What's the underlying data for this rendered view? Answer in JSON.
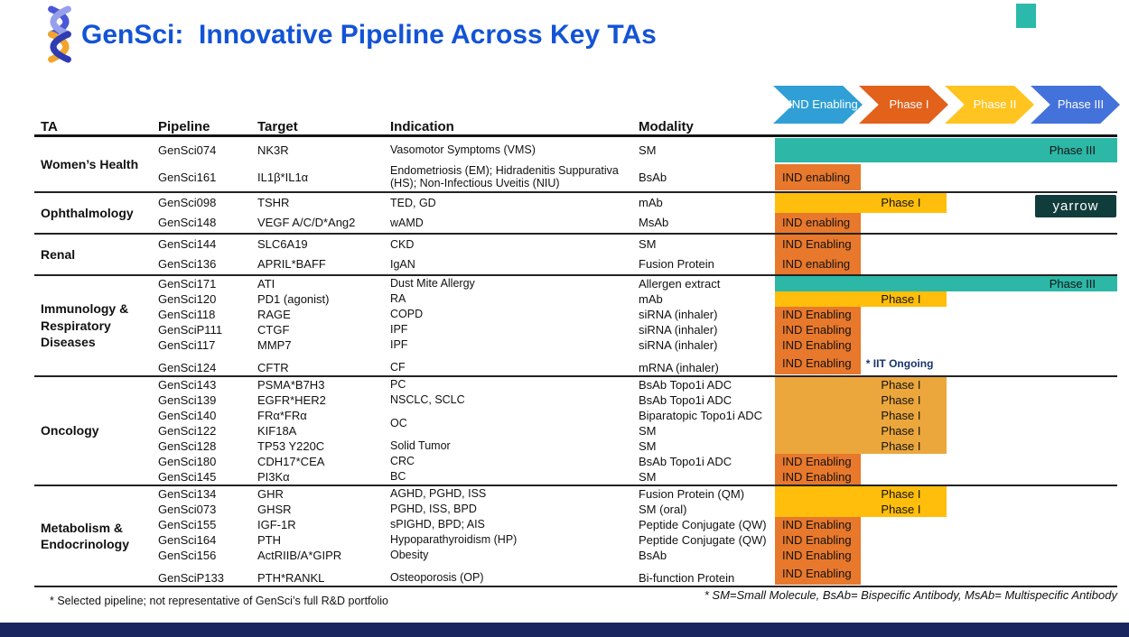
{
  "title": "GenSci:  Innovative Pipeline Across Key TAs",
  "colors": {
    "title_blue": "#1353D6",
    "ind_orange": "#E8782B",
    "phase1_yellow": "#FFBE0B",
    "phase1_amber": "#EBA73C",
    "phase3_teal": "#2CB7A7",
    "chevron_ind": "#2F9FD6",
    "chevron_p1": "#E2611B",
    "chevron_p2": "#FFC41F",
    "chevron_p3": "#4472DB",
    "watermark_teal": "#113C3C",
    "corner_teal": "#2BB9AC",
    "footer_navy": "#18255E"
  },
  "phases": [
    "IND Enabling",
    "Phase I",
    "Phase II",
    "Phase III"
  ],
  "watermark": "Yarrow",
  "table": {
    "headers": [
      "TA",
      "Pipeline",
      "Target",
      "Indication",
      "Modality"
    ],
    "sections": [
      {
        "ta": "Women’s Health",
        "rows": [
          {
            "pipeline": "GenSci074",
            "target": "NK3R",
            "indication": "Vasomotor Symptoms (VMS)",
            "modality": "SM",
            "bar": {
              "type": "phase3",
              "label": "Phase III"
            }
          },
          {
            "pipeline": "GenSci161",
            "target": "IL1β*IL1α",
            "indication": "Endometriosis (EM); Hidradenitis Suppurativa (HS); Non-Infectious Uveitis (NIU)",
            "modality": "BsAb",
            "bar": {
              "type": "ind-enabling",
              "label": "IND enabling"
            }
          }
        ]
      },
      {
        "ta": "Ophthalmology",
        "rows": [
          {
            "pipeline": "GenSci098",
            "target": "TSHR",
            "indication": "TED, GD",
            "modality": "mAb",
            "bar": {
              "type": "phase1",
              "label": "Phase I"
            }
          },
          {
            "pipeline": "GenSci148",
            "target": "VEGF A/C/D*Ang2",
            "indication": "wAMD",
            "modality": "MsAb",
            "bar": {
              "type": "ind-enabling",
              "label": "IND enabling"
            }
          }
        ]
      },
      {
        "ta": "Renal",
        "rows": [
          {
            "pipeline": "GenSci144",
            "target": "SLC6A19",
            "indication": "CKD",
            "modality": "SM",
            "bar": {
              "type": "ind-enabling",
              "label": "IND Enabling"
            }
          },
          {
            "pipeline": "GenSci136",
            "target": "APRIL*BAFF",
            "indication": "IgAN",
            "modality": "Fusion Protein",
            "bar": {
              "type": "ind-enabling",
              "label": "IND enabling"
            }
          }
        ]
      },
      {
        "ta": "Immunology & Respiratory Diseases",
        "rows": [
          {
            "pipeline": "GenSci171",
            "target": "ATI",
            "indication": "Dust Mite Allergy",
            "modality": "Allergen extract",
            "bar": {
              "type": "phase3",
              "label": "Phase III"
            }
          },
          {
            "pipeline": "GenSci120",
            "target": "PD1 (agonist)",
            "indication": "RA",
            "modality": "mAb",
            "bar": {
              "type": "phase1",
              "label": "Phase I"
            }
          },
          {
            "pipeline": "GenSci118",
            "target": "RAGE",
            "indication": "COPD",
            "modality": "siRNA (inhaler)",
            "bar": {
              "type": "ind-enabling",
              "label": "IND Enabling"
            }
          },
          {
            "pipeline": "GenSciP111",
            "target": "CTGF",
            "indication": "IPF",
            "modality": "siRNA (inhaler)",
            "bar": {
              "type": "ind-enabling",
              "label": "IND Enabling"
            }
          },
          {
            "pipeline": "GenSci117",
            "target": "MMP7",
            "indication": "IPF",
            "modality": "siRNA (inhaler)",
            "bar": {
              "type": "ind-enabling",
              "label": "IND Enabling"
            }
          },
          {
            "pipeline": "GenSci124",
            "target": "CFTR",
            "indication": "CF",
            "modality": "mRNA (inhaler)",
            "tall": true,
            "bar": {
              "type": "ind-enabling",
              "label": "IND Enabling",
              "note": "* IIT Ongoing"
            }
          }
        ]
      },
      {
        "ta": "Oncology",
        "rows": [
          {
            "pipeline": "GenSci143",
            "target": "PSMA*B7H3",
            "indication": "PC",
            "modality": "BsAb Topo1i ADC",
            "bar": {
              "type": "phase1-amber",
              "label": "Phase I"
            }
          },
          {
            "pipeline": "GenSci139",
            "target": "EGFR*HER2",
            "indication": "NSCLC, SCLC",
            "modality": "BsAb Topo1i ADC",
            "bar": {
              "type": "phase1-amber",
              "label": "Phase I"
            }
          },
          {
            "pipeline": "GenSci140",
            "target": "FRα*FRα",
            "indication": "OC",
            "shift": true,
            "modality": "Biparatopic Topo1i ADC",
            "bar": {
              "type": "phase1-amber",
              "label": "Phase I"
            }
          },
          {
            "pipeline": "GenSci122",
            "target": "KIF18A",
            "indication": "",
            "modality": "SM",
            "bar": {
              "type": "phase1-amber",
              "label": "Phase I"
            }
          },
          {
            "pipeline": "GenSci128",
            "target": "TP53 Y220C",
            "indication": "Solid Tumor",
            "modality": "SM",
            "bar": {
              "type": "phase1-amber",
              "label": "Phase I"
            }
          },
          {
            "pipeline": "GenSci180",
            "target": "CDH17*CEA",
            "indication": "CRC",
            "modality": "BsAb Topo1i ADC",
            "bar": {
              "type": "ind-enabling",
              "label": "IND Enabling"
            }
          },
          {
            "pipeline": "GenSci145",
            "target": "PI3Kα",
            "indication": "BC",
            "modality": "SM",
            "bar": {
              "type": "ind-enabling",
              "label": "IND Enabling"
            }
          }
        ]
      },
      {
        "ta": "Metabolism & Endocrinology",
        "rows": [
          {
            "pipeline": "GenSci134",
            "target": "GHR",
            "indication": "AGHD, PGHD, ISS",
            "modality": "Fusion Protein (QM)",
            "bar": {
              "type": "phase1",
              "label": "Phase I"
            }
          },
          {
            "pipeline": "GenSci073",
            "target": "GHSR",
            "indication": "PGHD, ISS, BPD",
            "modality": "SM (oral)",
            "bar": {
              "type": "phase1",
              "label": "Phase I"
            }
          },
          {
            "pipeline": "GenSci155",
            "target": "IGF-1R",
            "indication": "sPIGHD, BPD; AIS",
            "modality": "Peptide Conjugate (QW)",
            "bar": {
              "type": "ind-enabling",
              "label": "IND Enabling"
            }
          },
          {
            "pipeline": "GenSci164",
            "target": "PTH",
            "indication": "Hypoparathyroidism (HP)",
            "modality": "Peptide Conjugate (QW)",
            "bar": {
              "type": "ind-enabling",
              "label": "IND Enabling"
            }
          },
          {
            "pipeline": "GenSci156",
            "target": "ActRIIB/A*GIPR",
            "indication": "Obesity",
            "modality": "BsAb",
            "bar": {
              "type": "ind-enabling",
              "label": "IND Enabling"
            }
          },
          {
            "pipeline": "GenSciP133",
            "target": "PTH*RANKL",
            "indication": "Osteoporosis (OP)",
            "modality": "Bi-function Protein",
            "tall": true,
            "bar": {
              "type": "ind-enabling",
              "label": "IND Enabling"
            }
          }
        ]
      }
    ]
  },
  "footnotes": {
    "left": "* Selected pipeline; not representative of GenSci’s full R&D portfolio",
    "right": "* SM=Small Molecule, BsAb= Bispecific Antibody,  MsAb= Multispecific Antibody"
  }
}
